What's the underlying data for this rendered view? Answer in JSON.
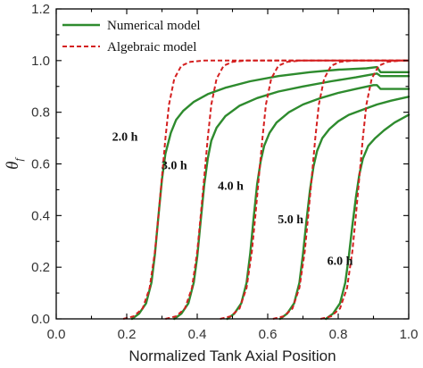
{
  "chart_data": {
    "type": "line",
    "xlabel": "Normalized Tank Axial Position",
    "ylabel_main": "θ",
    "ylabel_sub": "f",
    "xlim": [
      0.0,
      1.0
    ],
    "ylim": [
      0.0,
      1.2
    ],
    "xticks": [
      "0.0",
      "0.2",
      "0.4",
      "0.6",
      "0.8",
      "1.0"
    ],
    "yticks": [
      "0.0",
      "0.2",
      "0.4",
      "0.6",
      "0.8",
      "1.0",
      "1.2"
    ],
    "grid": false,
    "legend_position": "top-left",
    "legend": [
      {
        "label": "Numerical model",
        "color": "#2e8b2e",
        "style": "solid"
      },
      {
        "label": "Algebraic model",
        "color": "#d42020",
        "style": "dashed"
      }
    ],
    "annotations": [
      "2.0 h",
      "3.0 h",
      "4.0 h",
      "5.0 h",
      "6.0 h"
    ],
    "annotation_points": [
      {
        "x": 0.195,
        "y": 0.69
      },
      {
        "x": 0.335,
        "y": 0.58
      },
      {
        "x": 0.495,
        "y": 0.5
      },
      {
        "x": 0.665,
        "y": 0.37
      },
      {
        "x": 0.805,
        "y": 0.21
      }
    ],
    "series": [
      {
        "group": "numerical",
        "x": [
          0.215,
          0.235,
          0.255,
          0.27,
          0.28,
          0.29,
          0.3,
          0.31,
          0.325,
          0.34,
          0.36,
          0.39,
          0.43,
          0.48,
          0.55,
          0.63,
          0.72,
          0.8,
          0.88,
          0.91,
          0.92,
          1.0
        ],
        "y": [
          0.0,
          0.02,
          0.06,
          0.14,
          0.25,
          0.4,
          0.54,
          0.64,
          0.72,
          0.77,
          0.805,
          0.84,
          0.87,
          0.895,
          0.92,
          0.94,
          0.955,
          0.965,
          0.97,
          0.975,
          0.955,
          0.955
        ]
      },
      {
        "group": "numerical",
        "x": [
          0.335,
          0.355,
          0.375,
          0.39,
          0.4,
          0.41,
          0.42,
          0.43,
          0.44,
          0.455,
          0.48,
          0.52,
          0.57,
          0.63,
          0.7,
          0.78,
          0.85,
          0.91,
          0.92,
          1.0
        ],
        "y": [
          0.0,
          0.02,
          0.06,
          0.14,
          0.24,
          0.38,
          0.52,
          0.62,
          0.69,
          0.74,
          0.785,
          0.825,
          0.855,
          0.88,
          0.9,
          0.92,
          0.935,
          0.95,
          0.94,
          0.94
        ]
      },
      {
        "group": "numerical",
        "x": [
          0.485,
          0.505,
          0.525,
          0.54,
          0.55,
          0.56,
          0.57,
          0.58,
          0.59,
          0.605,
          0.625,
          0.66,
          0.7,
          0.75,
          0.8,
          0.85,
          0.9,
          0.91,
          0.92,
          1.0
        ],
        "y": [
          0.0,
          0.02,
          0.06,
          0.14,
          0.25,
          0.39,
          0.52,
          0.61,
          0.67,
          0.72,
          0.76,
          0.8,
          0.83,
          0.855,
          0.875,
          0.89,
          0.905,
          0.905,
          0.89,
          0.89
        ]
      },
      {
        "group": "numerical",
        "x": [
          0.635,
          0.655,
          0.675,
          0.69,
          0.7,
          0.71,
          0.72,
          0.73,
          0.74,
          0.755,
          0.775,
          0.8,
          0.83,
          0.87,
          0.91,
          0.95,
          1.0
        ],
        "y": [
          0.0,
          0.02,
          0.06,
          0.14,
          0.25,
          0.38,
          0.5,
          0.59,
          0.65,
          0.7,
          0.735,
          0.765,
          0.79,
          0.81,
          0.83,
          0.845,
          0.86
        ]
      },
      {
        "group": "numerical",
        "x": [
          0.765,
          0.785,
          0.805,
          0.82,
          0.83,
          0.84,
          0.85,
          0.86,
          0.87,
          0.885,
          0.905,
          0.93,
          0.96,
          1.0
        ],
        "y": [
          0.0,
          0.02,
          0.06,
          0.14,
          0.24,
          0.36,
          0.47,
          0.56,
          0.62,
          0.67,
          0.7,
          0.73,
          0.76,
          0.79
        ]
      },
      {
        "group": "algebraic",
        "x": [
          0.19,
          0.22,
          0.245,
          0.265,
          0.28,
          0.29,
          0.3,
          0.31,
          0.32,
          0.335,
          0.355,
          0.38,
          0.42,
          1.0
        ],
        "y": [
          0.0,
          0.01,
          0.04,
          0.12,
          0.26,
          0.4,
          0.55,
          0.7,
          0.83,
          0.93,
          0.98,
          0.995,
          1.0,
          1.0
        ]
      },
      {
        "group": "algebraic",
        "x": [
          0.31,
          0.34,
          0.365,
          0.385,
          0.4,
          0.41,
          0.42,
          0.43,
          0.44,
          0.455,
          0.475,
          0.5,
          0.54,
          1.0
        ],
        "y": [
          0.0,
          0.01,
          0.04,
          0.12,
          0.26,
          0.4,
          0.55,
          0.7,
          0.83,
          0.93,
          0.98,
          0.995,
          1.0,
          1.0
        ]
      },
      {
        "group": "algebraic",
        "x": [
          0.465,
          0.495,
          0.52,
          0.54,
          0.555,
          0.565,
          0.575,
          0.585,
          0.595,
          0.61,
          0.63,
          0.655,
          0.695,
          1.0
        ],
        "y": [
          0.0,
          0.01,
          0.04,
          0.12,
          0.26,
          0.4,
          0.55,
          0.7,
          0.83,
          0.93,
          0.98,
          0.995,
          1.0,
          1.0
        ]
      },
      {
        "group": "algebraic",
        "x": [
          0.615,
          0.645,
          0.67,
          0.69,
          0.705,
          0.715,
          0.725,
          0.735,
          0.745,
          0.76,
          0.78,
          0.805,
          0.845,
          1.0
        ],
        "y": [
          0.0,
          0.01,
          0.04,
          0.12,
          0.26,
          0.4,
          0.55,
          0.7,
          0.83,
          0.93,
          0.98,
          0.995,
          1.0,
          1.0
        ]
      },
      {
        "group": "algebraic",
        "x": [
          0.75,
          0.78,
          0.805,
          0.825,
          0.84,
          0.85,
          0.86,
          0.87,
          0.88,
          0.895,
          0.915,
          0.94,
          0.98,
          1.0
        ],
        "y": [
          0.0,
          0.01,
          0.04,
          0.12,
          0.26,
          0.4,
          0.55,
          0.7,
          0.83,
          0.93,
          0.98,
          0.995,
          1.0,
          1.0
        ]
      }
    ]
  }
}
